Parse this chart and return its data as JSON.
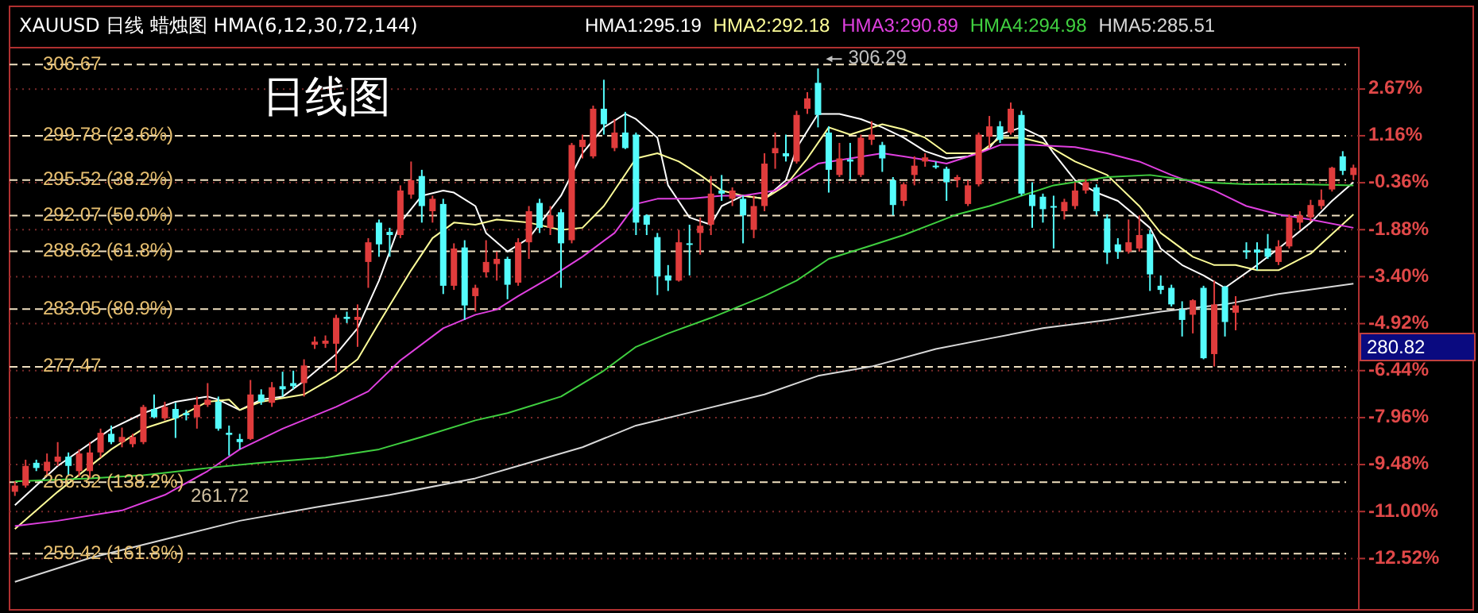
{
  "chart_data": {
    "type": "candlestick",
    "title": "XAUUSD 日线 蜡烛图 HMA(6,12,30,72,144)",
    "categories": [
      null,
      null,
      null,
      null,
      null,
      null,
      null,
      null,
      null,
      null,
      null,
      null,
      null,
      null,
      null,
      null,
      null,
      null,
      null,
      null,
      null,
      null,
      null,
      null,
      null,
      null,
      null,
      null,
      null,
      null,
      null,
      null,
      null,
      null,
      null,
      null,
      null,
      null,
      null,
      null,
      null,
      null,
      null,
      null,
      null,
      null,
      null,
      null,
      null,
      null,
      null,
      null,
      null,
      null,
      null,
      null,
      null,
      null,
      null,
      null,
      null,
      null,
      null,
      null,
      null,
      null,
      null,
      null,
      null,
      null,
      null,
      null,
      null,
      null,
      null,
      null,
      null,
      null,
      null,
      null,
      null,
      null,
      null,
      null,
      null,
      null,
      null,
      null,
      null,
      null,
      null,
      null,
      null,
      null,
      null,
      null,
      null,
      null,
      null,
      null,
      null,
      null,
      null,
      null,
      null,
      null,
      null,
      null,
      null,
      null,
      null,
      null,
      null,
      null,
      null,
      null,
      null,
      null,
      null,
      null,
      null,
      null,
      null,
      null,
      null,
      null
    ],
    "ohlc": [
      [
        265.4,
        266.4,
        265.0,
        266.0
      ],
      [
        266.0,
        268.5,
        265.8,
        267.9
      ],
      [
        268.2,
        268.5,
        267.4,
        267.7
      ],
      [
        267.4,
        269.1,
        266.9,
        268.3
      ],
      [
        268.3,
        270.2,
        267.9,
        268.8
      ],
      [
        268.8,
        269.2,
        267.0,
        267.9
      ],
      [
        267.4,
        269.5,
        266.9,
        269.1
      ],
      [
        267.4,
        270.2,
        266.7,
        269.2
      ],
      [
        269.2,
        271.5,
        268.7,
        271.1
      ],
      [
        271.0,
        271.8,
        270.0,
        270.2
      ],
      [
        270.2,
        271.6,
        269.7,
        270.7
      ],
      [
        270.0,
        271.0,
        269.7,
        270.7
      ],
      [
        270.2,
        273.8,
        270.0,
        273.6
      ],
      [
        273.4,
        274.8,
        272.5,
        272.6
      ],
      [
        272.5,
        274.1,
        272.3,
        273.6
      ],
      [
        273.4,
        274.0,
        270.6,
        272.5
      ],
      [
        273.0,
        273.3,
        272.3,
        272.8
      ],
      [
        272.6,
        274.6,
        271.5,
        273.8
      ],
      [
        273.8,
        275.9,
        273.6,
        274.3
      ],
      [
        274.1,
        274.6,
        271.3,
        271.5
      ],
      [
        271.1,
        271.8,
        268.9,
        270.9
      ],
      [
        270.5,
        271.0,
        269.5,
        270.2
      ],
      [
        270.5,
        276.2,
        270.4,
        274.8
      ],
      [
        274.8,
        275.3,
        273.8,
        274.1
      ],
      [
        274.0,
        276.0,
        273.6,
        275.5
      ],
      [
        275.6,
        277.0,
        274.6,
        275.3
      ],
      [
        275.9,
        277.1,
        275.3,
        275.6
      ],
      [
        275.9,
        278.2,
        274.6,
        277.6
      ],
      [
        279.6,
        280.4,
        279.2,
        279.9
      ],
      [
        279.7,
        280.5,
        279.3,
        280.0
      ],
      [
        279.7,
        282.5,
        277.0,
        282.2
      ],
      [
        282.3,
        282.8,
        281.7,
        282.1
      ],
      [
        282.0,
        283.5,
        279.4,
        282.3
      ],
      [
        287.6,
        289.9,
        285.1,
        289.5
      ],
      [
        291.4,
        291.7,
        288.1,
        289.3
      ],
      [
        290.5,
        290.9,
        288.1,
        290.2
      ],
      [
        290.2,
        295.0,
        289.9,
        294.5
      ],
      [
        294.1,
        297.3,
        293.7,
        295.5
      ],
      [
        295.9,
        296.5,
        291.4,
        293.0
      ],
      [
        292.5,
        294.0,
        291.4,
        293.7
      ],
      [
        293.2,
        293.7,
        284.5,
        285.3
      ],
      [
        285.3,
        289.4,
        284.9,
        288.9
      ],
      [
        289.0,
        289.7,
        282.0,
        283.4
      ],
      [
        284.3,
        285.4,
        282.8,
        285.1
      ],
      [
        286.6,
        289.7,
        286.1,
        287.6
      ],
      [
        287.4,
        288.6,
        285.8,
        287.9
      ],
      [
        287.9,
        288.1,
        284.0,
        285.4
      ],
      [
        285.6,
        289.9,
        285.3,
        289.5
      ],
      [
        289.5,
        293.0,
        287.9,
        292.5
      ],
      [
        293.3,
        293.7,
        290.4,
        290.9
      ],
      [
        290.9,
        293.0,
        290.2,
        292.1
      ],
      [
        292.4,
        292.7,
        285.1,
        289.4
      ],
      [
        289.7,
        299.1,
        289.4,
        298.9
      ],
      [
        298.7,
        299.9,
        297.6,
        299.4
      ],
      [
        297.8,
        302.7,
        297.6,
        302.4
      ],
      [
        302.4,
        305.2,
        299.9,
        300.9
      ],
      [
        298.6,
        301.4,
        298.3,
        300.1
      ],
      [
        300.1,
        302.1,
        298.5,
        298.6
      ],
      [
        299.9,
        300.1,
        290.2,
        291.4
      ],
      [
        292.1,
        292.2,
        290.2,
        291.2
      ],
      [
        290.0,
        290.4,
        284.4,
        286.2
      ],
      [
        286.3,
        287.3,
        284.8,
        285.8
      ],
      [
        285.8,
        290.7,
        285.7,
        289.5
      ],
      [
        289.4,
        291.2,
        286.3,
        289.3
      ],
      [
        290.4,
        291.9,
        288.3,
        291.1
      ],
      [
        291.2,
        295.9,
        290.2,
        294.2
      ],
      [
        294.5,
        296.0,
        293.5,
        294.2
      ],
      [
        293.7,
        294.8,
        293.0,
        294.5
      ],
      [
        293.7,
        294.0,
        289.4,
        292.1
      ],
      [
        290.7,
        294.0,
        289.9,
        293.0
      ],
      [
        293.0,
        298.1,
        292.5,
        297.1
      ],
      [
        298.1,
        300.1,
        296.6,
        298.6
      ],
      [
        298.1,
        299.9,
        297.3,
        297.8
      ],
      [
        297.3,
        302.2,
        297.1,
        301.8
      ],
      [
        302.4,
        304.0,
        301.9,
        303.4
      ],
      [
        304.9,
        306.29,
        300.6,
        301.8
      ],
      [
        300.1,
        300.7,
        294.3,
        296.5
      ],
      [
        296.0,
        299.1,
        295.8,
        297.6
      ],
      [
        297.5,
        299.1,
        295.5,
        297.3
      ],
      [
        296.0,
        299.9,
        295.8,
        299.6
      ],
      [
        299.4,
        301.2,
        298.9,
        299.9
      ],
      [
        298.9,
        299.2,
        296.3,
        297.6
      ],
      [
        295.5,
        295.8,
        292.1,
        293.1
      ],
      [
        293.5,
        295.3,
        293.0,
        295.1
      ],
      [
        296.0,
        297.8,
        295.0,
        296.9
      ],
      [
        297.3,
        298.1,
        296.8,
        297.7
      ],
      [
        296.9,
        297.3,
        296.6,
        296.8
      ],
      [
        296.6,
        296.8,
        293.5,
        295.3
      ],
      [
        295.5,
        296.0,
        294.8,
        295.8
      ],
      [
        293.2,
        295.5,
        293.0,
        295.0
      ],
      [
        295.1,
        300.1,
        294.9,
        299.9
      ],
      [
        299.7,
        301.7,
        298.6,
        300.7
      ],
      [
        300.7,
        301.2,
        299.1,
        299.4
      ],
      [
        300.1,
        303.0,
        299.9,
        302.4
      ],
      [
        301.8,
        302.2,
        294.0,
        294.2
      ],
      [
        294.1,
        295.3,
        290.9,
        293.0
      ],
      [
        293.9,
        294.2,
        291.4,
        292.7
      ],
      [
        293.0,
        294.0,
        288.9,
        292.9
      ],
      [
        292.5,
        293.7,
        291.7,
        293.4
      ],
      [
        293.0,
        295.3,
        292.7,
        294.5
      ],
      [
        294.5,
        295.6,
        294.2,
        295.3
      ],
      [
        294.8,
        295.1,
        292.1,
        292.5
      ],
      [
        291.8,
        292.2,
        287.4,
        288.5
      ],
      [
        289.3,
        289.9,
        287.9,
        288.6
      ],
      [
        288.6,
        291.7,
        288.4,
        289.5
      ],
      [
        288.9,
        292.1,
        288.6,
        290.2
      ],
      [
        290.3,
        290.7,
        284.8,
        286.4
      ],
      [
        285.3,
        286.3,
        284.5,
        284.9
      ],
      [
        285.1,
        285.4,
        283.3,
        283.5
      ],
      [
        283.0,
        283.8,
        280.4,
        282.0
      ],
      [
        282.5,
        284.0,
        280.7,
        283.9
      ],
      [
        285.1,
        285.3,
        278.2,
        278.3
      ],
      [
        278.7,
        285.8,
        277.5,
        283.5
      ],
      [
        285.2,
        285.3,
        280.4,
        281.8
      ],
      [
        282.7,
        284.3,
        281.0,
        283.4
      ],
      [
        288.7,
        289.5,
        287.9,
        288.6
      ],
      [
        288.8,
        289.5,
        286.8,
        288.5
      ],
      [
        288.9,
        290.3,
        287.9,
        288.1
      ],
      [
        287.6,
        289.7,
        287.3,
        289.1
      ],
      [
        289.1,
        292.2,
        288.9,
        291.9
      ],
      [
        291.4,
        292.5,
        290.7,
        292.1
      ],
      [
        291.9,
        293.6,
        291.5,
        293.1
      ],
      [
        293.0,
        294.6,
        292.7,
        293.6
      ],
      [
        294.6,
        296.8,
        294.4,
        296.7
      ],
      [
        297.8,
        298.3,
        296.0,
        296.4
      ],
      [
        296.0,
        297.0,
        295.5,
        296.7
      ]
    ],
    "colors": [
      "#e03c3c",
      "#e03c3c",
      "#54fcfc",
      "#e03c3c",
      "#e03c3c",
      "#54fcfc",
      "#e03c3c",
      "#e03c3c",
      "#e03c3c",
      "#54fcfc",
      "#e03c3c",
      "#e03c3c",
      "#e03c3c",
      "#54fcfc",
      "#e03c3c",
      "#54fcfc",
      "#54fcfc",
      "#e03c3c",
      "#e03c3c",
      "#54fcfc",
      "#54fcfc",
      "#54fcfc",
      "#e03c3c",
      "#54fcfc",
      "#e03c3c",
      "#54fcfc",
      "#54fcfc",
      "#e03c3c",
      "#e03c3c",
      "#e03c3c",
      "#e03c3c",
      "#54fcfc",
      "#e03c3c",
      "#e03c3c",
      "#54fcfc",
      "#54fcfc",
      "#e03c3c",
      "#e03c3c",
      "#54fcfc",
      "#e03c3c",
      "#54fcfc",
      "#e03c3c",
      "#54fcfc",
      "#e03c3c",
      "#e03c3c",
      "#e03c3c",
      "#54fcfc",
      "#e03c3c",
      "#e03c3c",
      "#54fcfc",
      "#e03c3c",
      "#54fcfc",
      "#e03c3c",
      "#e03c3c",
      "#e03c3c",
      "#54fcfc",
      "#e03c3c",
      "#54fcfc",
      "#54fcfc",
      "#54fcfc",
      "#54fcfc",
      "#54fcfc",
      "#e03c3c",
      "#54fcfc",
      "#e03c3c",
      "#e03c3c",
      "#54fcfc",
      "#e03c3c",
      "#54fcfc",
      "#e03c3c",
      "#e03c3c",
      "#e03c3c",
      "#54fcfc",
      "#e03c3c",
      "#e03c3c",
      "#54fcfc",
      "#54fcfc",
      "#e03c3c",
      "#54fcfc",
      "#e03c3c",
      "#e03c3c",
      "#54fcfc",
      "#54fcfc",
      "#e03c3c",
      "#e03c3c",
      "#e03c3c",
      "#54fcfc",
      "#54fcfc",
      "#e03c3c",
      "#e03c3c",
      "#e03c3c",
      "#e03c3c",
      "#54fcfc",
      "#e03c3c",
      "#54fcfc",
      "#54fcfc",
      "#54fcfc",
      "#54fcfc",
      "#e03c3c",
      "#e03c3c",
      "#e03c3c",
      "#54fcfc",
      "#54fcfc",
      "#54fcfc",
      "#e03c3c",
      "#e03c3c",
      "#54fcfc",
      "#54fcfc",
      "#54fcfc",
      "#54fcfc",
      "#e03c3c",
      "#54fcfc",
      "#e03c3c",
      "#54fcfc",
      "#e03c3c",
      "#54fcfc",
      "#54fcfc",
      "#54fcfc",
      "#e03c3c",
      "#e03c3c",
      "#e03c3c",
      "#e03c3c",
      "#e03c3c",
      "#e03c3c",
      "#54fcfc",
      "#e03c3c"
    ],
    "series": [
      {
        "name": "HMA1:295.19",
        "type": "line",
        "color": "#ffffff",
        "values": [
          264.1,
          null,
          null,
          null,
          267.9,
          null,
          null,
          null,
          null,
          271.5,
          null,
          null,
          273.0,
          null,
          null,
          274.1,
          null,
          null,
          274.6,
          274.3,
          null,
          273.3,
          null,
          274.3,
          null,
          274.6,
          null,
          276.1,
          null,
          null,
          278.7,
          null,
          281.2,
          null,
          285.8,
          null,
          291.4,
          null,
          294.0,
          null,
          294.5,
          294.3,
          null,
          293.0,
          290.4,
          null,
          288.6,
          null,
          289.9,
          null,
          null,
          294.0,
          null,
          298.1,
          null,
          300.6,
          null,
          301.9,
          301.4,
          null,
          299.6,
          295.0,
          null,
          291.9,
          null,
          291.2,
          293.0,
          null,
          294.0,
          null,
          293.7,
          null,
          295.5,
          298.6,
          null,
          301.9,
          null,
          301.9,
          null,
          301.4,
          null,
          300.6,
          null,
          299.6,
          null,
          298.3,
          null,
          297.6,
          null,
          297.8,
          null,
          298.6,
          299.9,
          null,
          300.6,
          null,
          299.6,
          298.1,
          null,
          295.5,
          null,
          294.3,
          null,
          293.5,
          null,
          null,
          290.9,
          288.9,
          null,
          287.3,
          null,
          286.3,
          null,
          285.1,
          null,
          null,
          287.3,
          null,
          288.9,
          null,
          null,
          291.4,
          null,
          293.5,
          null,
          295.3
        ]
      },
      {
        "name": "HMA2:292.18",
        "type": "line",
        "color": "#ffff99",
        "values": [
          261.8,
          null,
          null,
          null,
          265.4,
          null,
          null,
          null,
          null,
          269.5,
          null,
          null,
          271.5,
          null,
          null,
          272.5,
          null,
          null,
          274.1,
          null,
          274.3,
          273.3,
          null,
          274.1,
          null,
          null,
          null,
          274.8,
          null,
          null,
          276.6,
          null,
          278.2,
          null,
          281.7,
          null,
          null,
          286.8,
          null,
          289.9,
          null,
          291.4,
          null,
          291.2,
          null,
          291.7,
          null,
          null,
          291.4,
          null,
          null,
          290.7,
          null,
          290.9,
          null,
          293.0,
          null,
          null,
          297.6,
          null,
          298.1,
          null,
          297.3,
          null,
          296.0,
          null,
          294.5,
          null,
          294.0,
          null,
          293.7,
          null,
          295.0,
          null,
          297.6,
          null,
          300.6,
          null,
          299.9,
          null,
          null,
          300.9,
          null,
          300.4,
          null,
          299.6,
          null,
          298.1,
          null,
          null,
          298.1,
          null,
          299.6,
          null,
          299.6,
          null,
          299.1,
          null,
          null,
          297.3,
          null,
          null,
          296.0,
          null,
          null,
          293.0,
          null,
          290.4,
          null,
          null,
          288.1,
          null,
          287.3,
          null,
          287.3,
          null,
          286.8,
          null,
          286.8,
          null,
          null,
          288.4,
          null,
          null,
          null,
          292.2
        ]
      },
      {
        "name": "HMA3:290.89",
        "type": "line",
        "color": "#e040e0",
        "values": [
          262.1,
          null,
          null,
          null,
          262.6,
          null,
          null,
          null,
          null,
          null,
          263.6,
          null,
          null,
          null,
          265.1,
          null,
          null,
          null,
          267.4,
          null,
          null,
          269.5,
          null,
          null,
          null,
          271.5,
          null,
          null,
          null,
          null,
          273.6,
          null,
          null,
          275.1,
          null,
          null,
          278.1,
          null,
          null,
          null,
          281.2,
          null,
          null,
          282.5,
          null,
          283.0,
          null,
          284.3,
          null,
          null,
          286.1,
          null,
          null,
          288.1,
          null,
          null,
          290.4,
          null,
          293.2,
          null,
          293.7,
          null,
          null,
          293.7,
          null,
          null,
          294.0,
          null,
          294.0,
          null,
          null,
          294.5,
          null,
          295.8,
          null,
          297.1,
          null,
          null,
          297.6,
          null,
          null,
          298.1,
          null,
          297.8,
          null,
          null,
          297.3,
          297.1,
          null,
          null,
          298.1,
          null,
          298.9,
          null,
          null,
          298.9,
          null,
          null,
          null,
          298.7,
          null,
          null,
          298.1,
          null,
          null,
          297.3,
          null,
          null,
          296.0,
          null,
          null,
          null,
          294.5,
          null,
          null,
          293.0,
          null,
          null,
          292.2,
          null,
          null,
          291.7,
          null,
          null,
          null,
          290.9
        ]
      },
      {
        "name": "HMA4:294.98",
        "type": "line",
        "color": "#40d040",
        "values": [
          266.4,
          null,
          null,
          null,
          null,
          null,
          null,
          266.7,
          null,
          null,
          null,
          null,
          267.0,
          null,
          null,
          null,
          null,
          null,
          267.7,
          null,
          null,
          null,
          null,
          268.2,
          null,
          null,
          null,
          null,
          null,
          268.7,
          null,
          null,
          null,
          null,
          269.5,
          null,
          null,
          null,
          270.7,
          null,
          null,
          null,
          null,
          272.3,
          null,
          null,
          273.0,
          null,
          null,
          null,
          null,
          274.6,
          null,
          null,
          null,
          277.1,
          null,
          null,
          279.4,
          null,
          null,
          280.7,
          null,
          null,
          null,
          282.2,
          null,
          null,
          null,
          null,
          284.3,
          null,
          null,
          285.8,
          null,
          null,
          287.9,
          null,
          null,
          null,
          289.2,
          null,
          null,
          290.2,
          null,
          null,
          291.4,
          null,
          292.2,
          null,
          null,
          293.0,
          null,
          null,
          294.0,
          null,
          null,
          295.0,
          null,
          null,
          null,
          null,
          295.8,
          null,
          null,
          null,
          296.0,
          null,
          null,
          null,
          null,
          295.3,
          null,
          null,
          null,
          295.1,
          null,
          null,
          null,
          null,
          295.1,
          null,
          null,
          null,
          null,
          295.0
        ]
      },
      {
        "name": "HMA5:285.51",
        "type": "line",
        "color": "#d8d8d8",
        "values": [
          256.7,
          null,
          null,
          null,
          null,
          null,
          null,
          259.0,
          null,
          null,
          null,
          null,
          null,
          null,
          260.8,
          null,
          null,
          null,
          null,
          null,
          null,
          262.6,
          null,
          null,
          null,
          null,
          null,
          null,
          263.9,
          null,
          null,
          null,
          null,
          null,
          null,
          265.1,
          null,
          null,
          null,
          null,
          null,
          null,
          null,
          266.7,
          null,
          null,
          null,
          267.9,
          null,
          null,
          null,
          null,
          null,
          269.7,
          null,
          null,
          null,
          null,
          271.8,
          null,
          null,
          null,
          null,
          null,
          273.3,
          null,
          null,
          null,
          null,
          null,
          274.8,
          null,
          null,
          null,
          null,
          276.6,
          null,
          null,
          null,
          null,
          277.5,
          null,
          null,
          null,
          null,
          null,
          279.2,
          null,
          null,
          null,
          null,
          280.2,
          null,
          null,
          null,
          null,
          281.2,
          null,
          null,
          null,
          null,
          null,
          282.0,
          null,
          null,
          null,
          null,
          282.8,
          null,
          null,
          null,
          null,
          null,
          283.5,
          null,
          null,
          null,
          null,
          284.5,
          null,
          null,
          null,
          null,
          null,
          null,
          285.5
        ]
      }
    ],
    "ylim": [
      254.0,
      308.3
    ],
    "yticks": [
      306.67,
      {
        "value": 299.78,
        "label": "299.78 (23.6%)"
      },
      {
        "value": 295.52,
        "label": "295.52 (38.2%)"
      },
      {
        "value": 292.07,
        "label": "292.07 (50.0%)"
      },
      {
        "value": 288.62,
        "label": "288.62 (61.8%)"
      },
      {
        "value": 283.05,
        "label": "283.05 (80.9%)"
      },
      277.47,
      {
        "value": 266.32,
        "label": "266.32 (138.2%)"
      },
      {
        "value": 259.42,
        "label": "259.42 (161.8%)"
      }
    ],
    "y2lim": [
      -14.18,
      4.01
    ],
    "y2ticks": [
      {
        "value": 2.67,
        "label": "2.67%"
      },
      {
        "value": 1.16,
        "label": "1.16%"
      },
      {
        "value": -0.36,
        "label": "-0.36%"
      },
      {
        "value": -1.88,
        "label": "-1.88%"
      },
      {
        "value": -3.4,
        "label": "-3.40%"
      },
      {
        "value": -4.92,
        "label": "-4.92%"
      },
      {
        "value": -6.44,
        "label": "-6.44%"
      },
      {
        "value": -7.96,
        "label": "-7.96%"
      },
      {
        "value": -9.48,
        "label": "-9.48%"
      },
      {
        "value": -11,
        "label": "-11.00%"
      },
      {
        "value": -12.52,
        "label": "-12.52%"
      }
    ],
    "grid": true,
    "annotations": [
      "日线图",
      "261.72",
      "306.29",
      "280.82"
    ]
  }
}
